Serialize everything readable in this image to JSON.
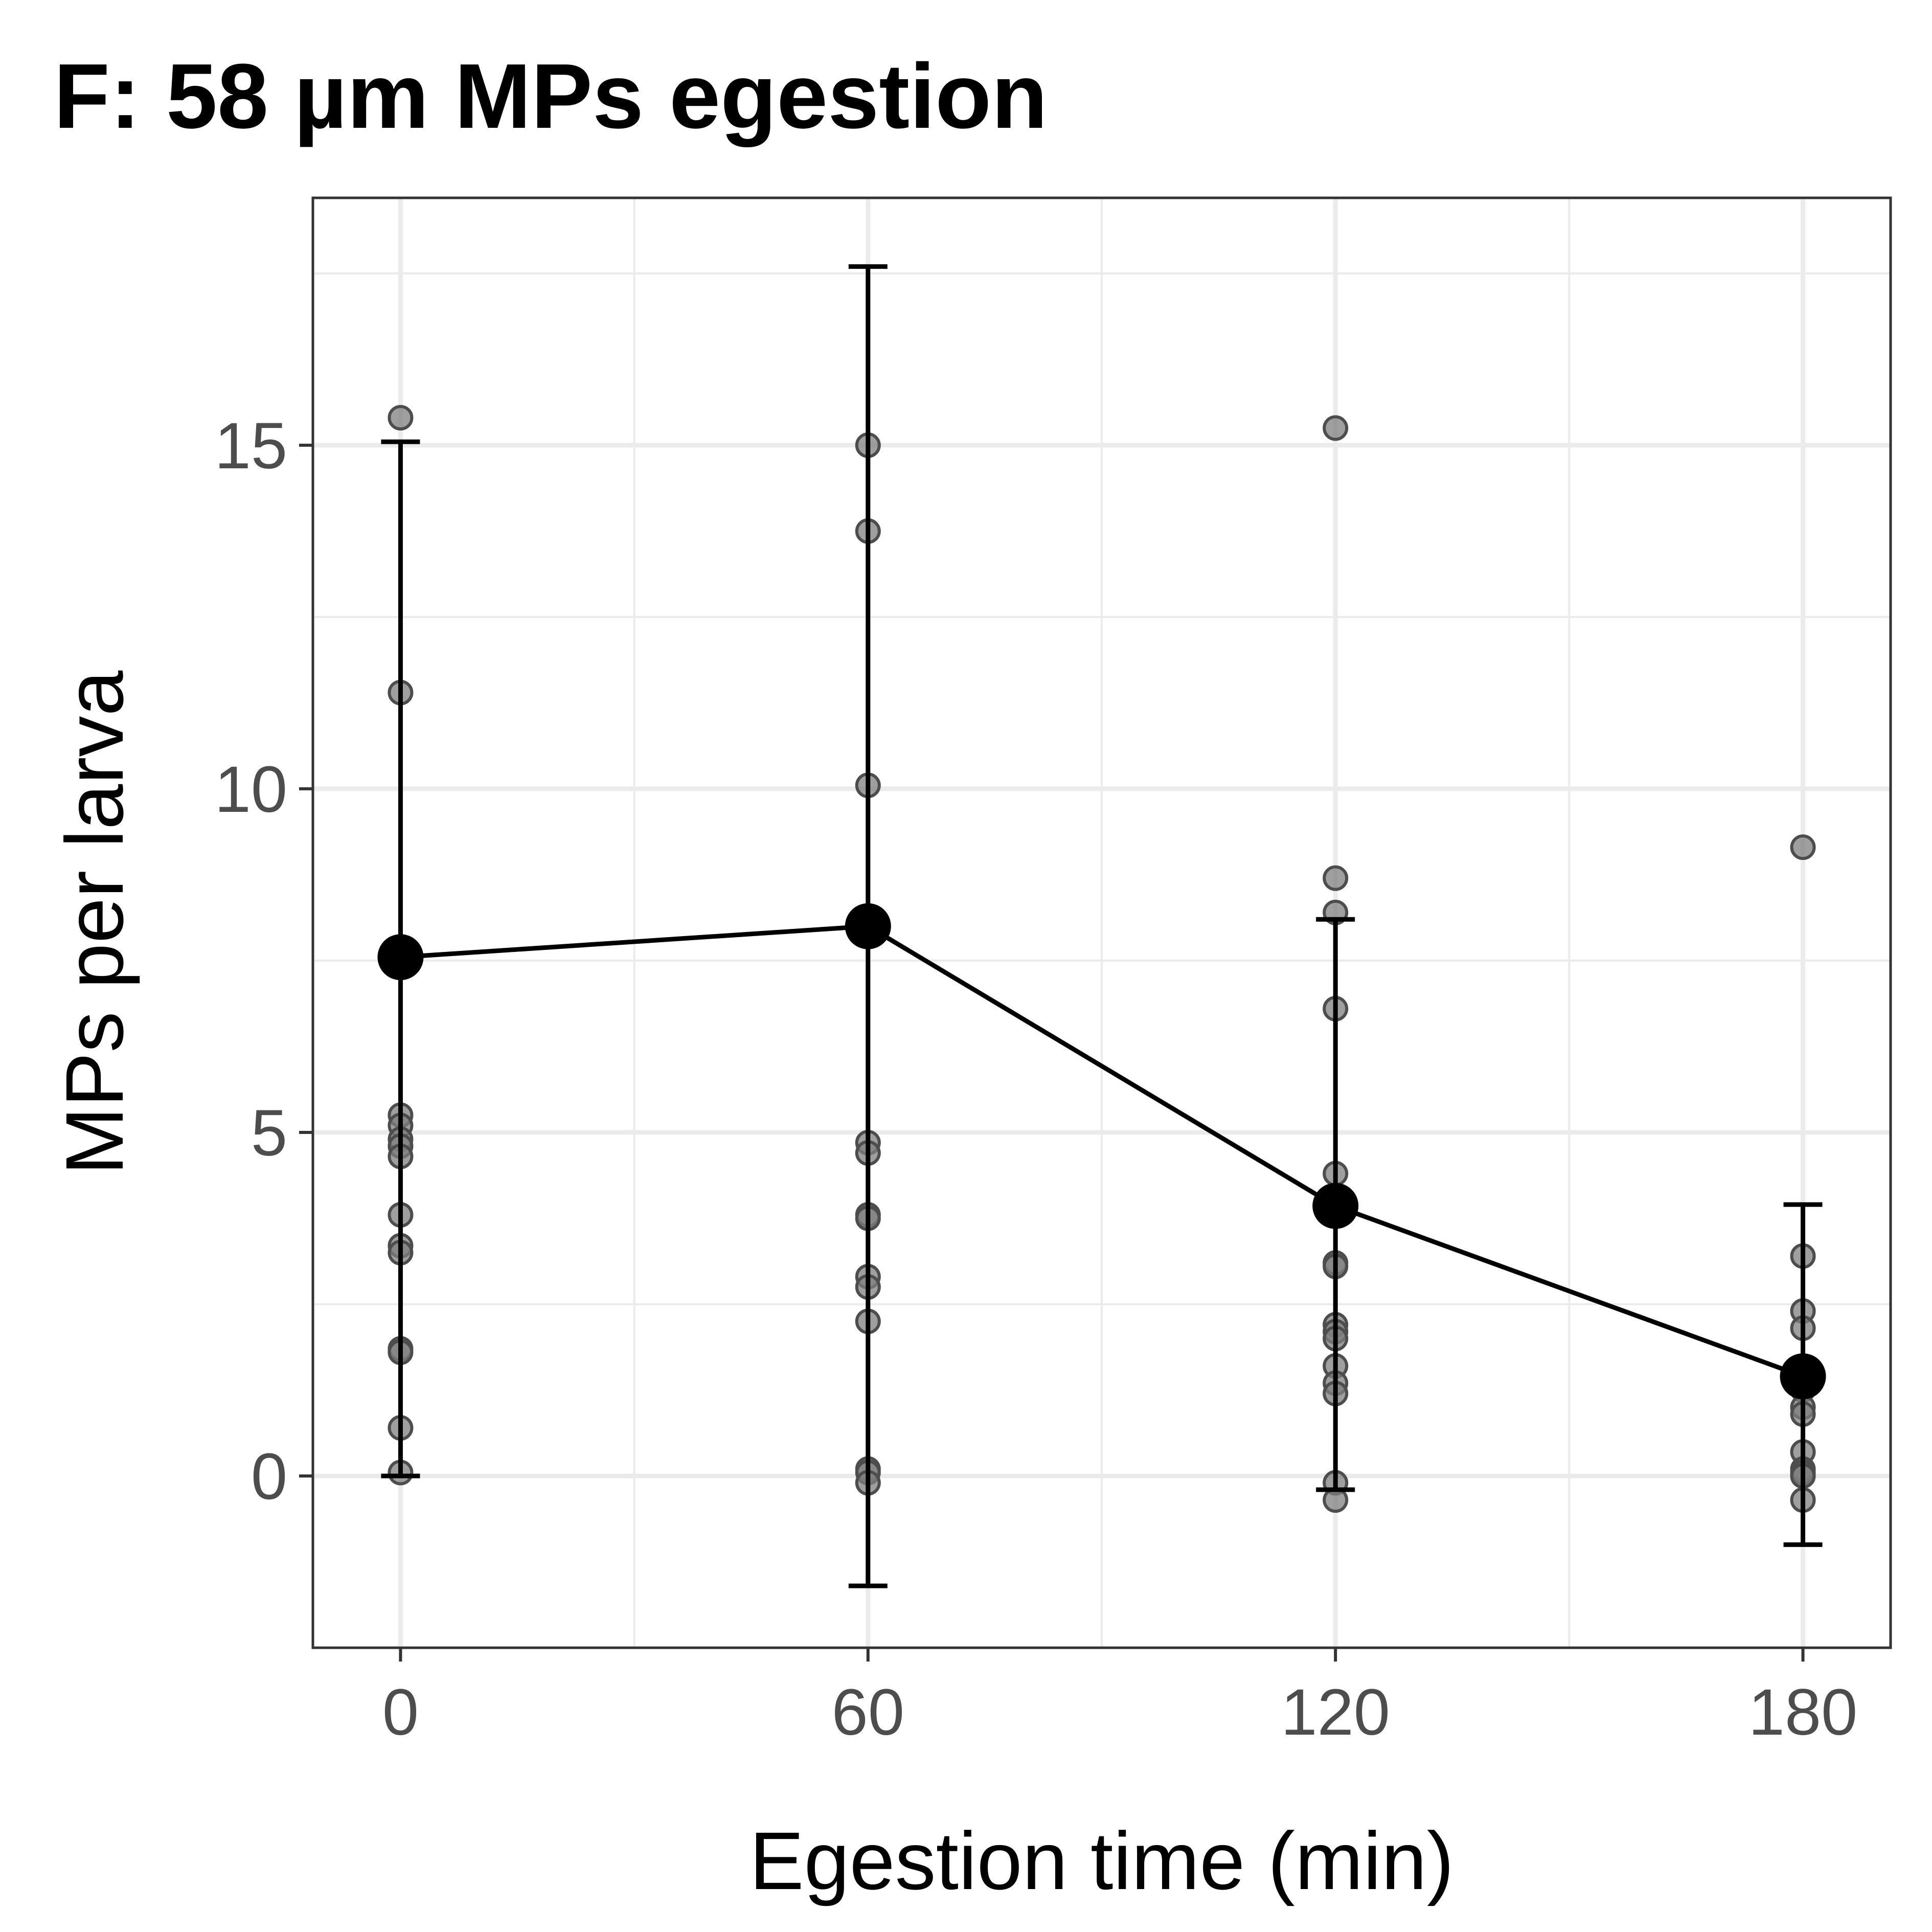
{
  "chart_data": {
    "type": "line",
    "title": "F: 58 µm MPs egestion",
    "xlabel": "Egestion time (min)",
    "ylabel": "MPs per larva",
    "x_ticks": [
      0,
      60,
      120,
      180
    ],
    "y_ticks": [
      0,
      5,
      10,
      15
    ],
    "xlim": [
      -11.25,
      191.25
    ],
    "ylim": [
      -2.5,
      18.6
    ],
    "grid": true,
    "colors": {
      "line": "#000000",
      "points": "#000000",
      "raw_points": "#7f7f7f",
      "grid": "#ebebeb",
      "panel_border": "#333333"
    },
    "series": [
      {
        "x": [
          0,
          60,
          120,
          180
        ],
        "mean": [
          7.55,
          8.0,
          3.93,
          1.45
        ],
        "error_low": [
          0.0,
          -1.6,
          -0.2,
          -1.0
        ],
        "error_high": [
          15.05,
          17.6,
          8.1,
          3.95
        ]
      }
    ],
    "raw_points": [
      {
        "x": 0,
        "y": [
          15.4,
          11.4,
          5.25,
          5.1,
          4.9,
          4.8,
          4.65,
          3.8,
          3.35,
          3.25,
          1.85,
          1.8,
          0.7,
          0.05
        ]
      },
      {
        "x": 60,
        "y": [
          15.0,
          13.75,
          10.05,
          4.85,
          4.7,
          3.8,
          3.75,
          2.9,
          2.75,
          2.25,
          0.1,
          0.05,
          -0.1
        ]
      },
      {
        "x": 120,
        "y": [
          15.25,
          8.7,
          8.2,
          6.8,
          4.4,
          3.1,
          3.05,
          2.2,
          2.1,
          2.0,
          1.6,
          1.35,
          1.2,
          -0.1,
          -0.35
        ]
      },
      {
        "x": 180,
        "y": [
          9.15,
          3.2,
          2.4,
          2.15,
          1.25,
          1.0,
          0.9,
          0.35,
          0.1,
          0.05,
          0.0,
          -0.35
        ]
      }
    ]
  }
}
